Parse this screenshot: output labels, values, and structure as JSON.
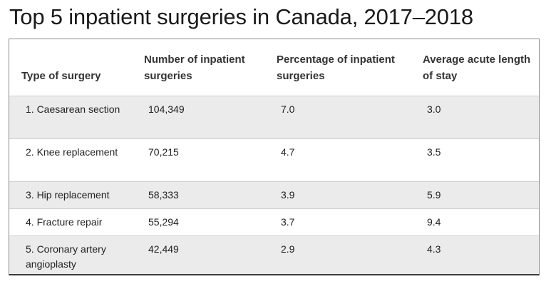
{
  "title": "Top 5 inpatient surgeries in Canada, 2017–2018",
  "table": {
    "headers": [
      "Type of surgery",
      "Number of inpatient surgeries",
      "Percentage of inpatient surgeries",
      "Average acute length of stay"
    ],
    "rows": [
      {
        "surgery": "1. Caesarean section",
        "count": "104,349",
        "percent": "7.0",
        "stay": "3.0"
      },
      {
        "surgery": "2. Knee replacement",
        "count": "70,215",
        "percent": "4.7",
        "stay": "3.5"
      },
      {
        "surgery": "3. Hip replacement",
        "count": "58,333",
        "percent": "3.9",
        "stay": "5.9"
      },
      {
        "surgery": "4. Fracture repair",
        "count": "55,294",
        "percent": "3.7",
        "stay": "9.4"
      },
      {
        "surgery": "5. Coronary artery angioplasty",
        "count": "42,449",
        "percent": "2.9",
        "stay": "4.3"
      }
    ]
  }
}
